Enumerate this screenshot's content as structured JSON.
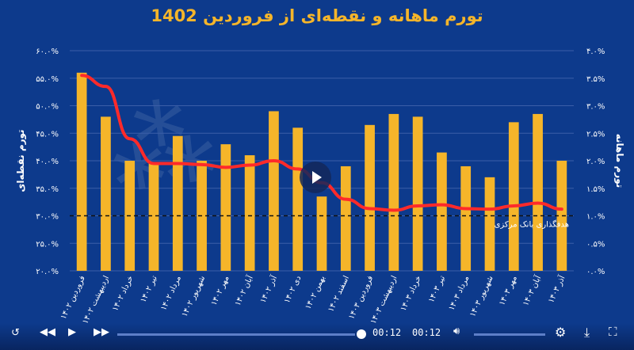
{
  "title": "تورم ماهانه و نقطه‌ای از فروردین 1402",
  "colors": {
    "background": "#0d3a8c",
    "bars": "#f5b52a",
    "line": "#ff2a2a",
    "grid": "#3b5ea8",
    "text": "#ffffff"
  },
  "watermark": "دنیای اقتصاد",
  "video": {
    "time_left": "00:12",
    "time_right": "00:12",
    "legend_hint": "تورم ماهانه"
  },
  "chart_data": {
    "type": "bar",
    "title": "تورم ماهانه و نقطه‌ای از فروردین 1402",
    "categories": [
      "فروردین ۱۴۰۲",
      "اردیبهشت ۱۴۰۲",
      "خرداد ۱۴۰۲",
      "تیر ۱۴۰۲",
      "مرداد ۱۴۰۲",
      "شهریور ۱۴۰۲",
      "مهر ۱۴۰۲",
      "آبان ۱۴۰۲",
      "آذر ۱۴۰۲",
      "دی ۱۴۰۲",
      "بهمن ۱۴۰۲",
      "اسفند ۱۴۰۲",
      "فروردین ۱۴۰۳",
      "اردیبهشت ۱۴۰۳",
      "خرداد ۱۴۰۳",
      "تیر ۱۴۰۳",
      "مرداد ۱۴۰۳",
      "شهریور ۱۴۰۳",
      "مهر ۱۴۰۳",
      "آبان ۱۴۰۳",
      "آذر ۱۴۰۳"
    ],
    "series": [
      {
        "name": "تورم ماهانه",
        "type": "bar",
        "axis": "right",
        "values": [
          3.6,
          2.8,
          2.0,
          1.95,
          2.45,
          2.0,
          2.3,
          2.1,
          2.9,
          2.6,
          1.35,
          1.9,
          2.65,
          2.85,
          2.8,
          2.15,
          1.9,
          1.7,
          2.7,
          2.85,
          2.0
        ]
      },
      {
        "name": "تورم نقطه‌ای",
        "type": "line",
        "axis": "left",
        "values": [
          55.5,
          53.5,
          44.0,
          39.5,
          39.5,
          39.3,
          38.8,
          39.2,
          40.0,
          38.5,
          36.0,
          33.0,
          31.3,
          31.0,
          31.8,
          32.0,
          31.3,
          31.2,
          31.8,
          32.3,
          31.2
        ]
      }
    ],
    "left_axis": {
      "label": "تورم نقطه‌ای",
      "min": 20,
      "max": 60,
      "step": 5,
      "tick_labels": [
        "۲۰.۰%",
        "۲۵.۰%",
        "۳۰.۰%",
        "۳۵.۰%",
        "۴۰.۰%",
        "۴۵.۰%",
        "۵۰.۰%",
        "۵۵.۰%",
        "۶۰.۰%"
      ]
    },
    "right_axis": {
      "label": "تورم ماهانه",
      "min": 0,
      "max": 4,
      "step": 0.5,
      "tick_labels": [
        "۰.۰%",
        "۰.۵%",
        "۱.۰%",
        "۱.۵%",
        "۲.۰%",
        "۲.۵%",
        "۳.۰%",
        "۳.۵%",
        "۴.۰%"
      ]
    },
    "reference_line": {
      "label": "هدفگذاری بانک مرکزی",
      "value_right_axis": 1.0,
      "style": "dashed"
    },
    "grid": true
  }
}
